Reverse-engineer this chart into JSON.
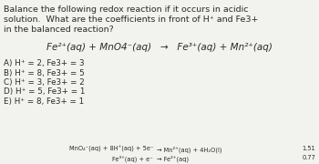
{
  "bg_color": "#f2f2ee",
  "title_lines": [
    "Balance the following redox reaction if it occurs in acidic",
    "solution.  What are the coefficients in front of H⁺ and Fe3+",
    "in the balanced reaction?"
  ],
  "reaction": "Fe²⁺(aq) + MnO4⁻(aq)   →   Fe³⁺(aq) + Mn²⁺(aq)",
  "choices": [
    "A) H⁺ = 2, Fe3+ = 3",
    "B) H⁺ = 8, Fe3+ = 5",
    "C) H⁺ = 3, Fe3+ = 2",
    "D) H⁺ = 5, Fe3+ = 1",
    "E) H⁺ = 8, Fe3+ = 1"
  ],
  "half_lhs": [
    "MnO₄⁻(aq) + 8H⁺(aq) + 5e⁻",
    "Fe³⁺(aq) + e⁻"
  ],
  "half_rhs": [
    "→ Mn²⁺(aq) + 4H₂O(l)",
    "→ Fe²⁺(aq)"
  ],
  "half_potentials": [
    "1.51",
    "0.77"
  ],
  "text_color": "#2a2a2a",
  "font_size_title": 6.8,
  "font_size_reaction": 7.5,
  "font_size_choices": 6.3,
  "font_size_half": 4.8
}
